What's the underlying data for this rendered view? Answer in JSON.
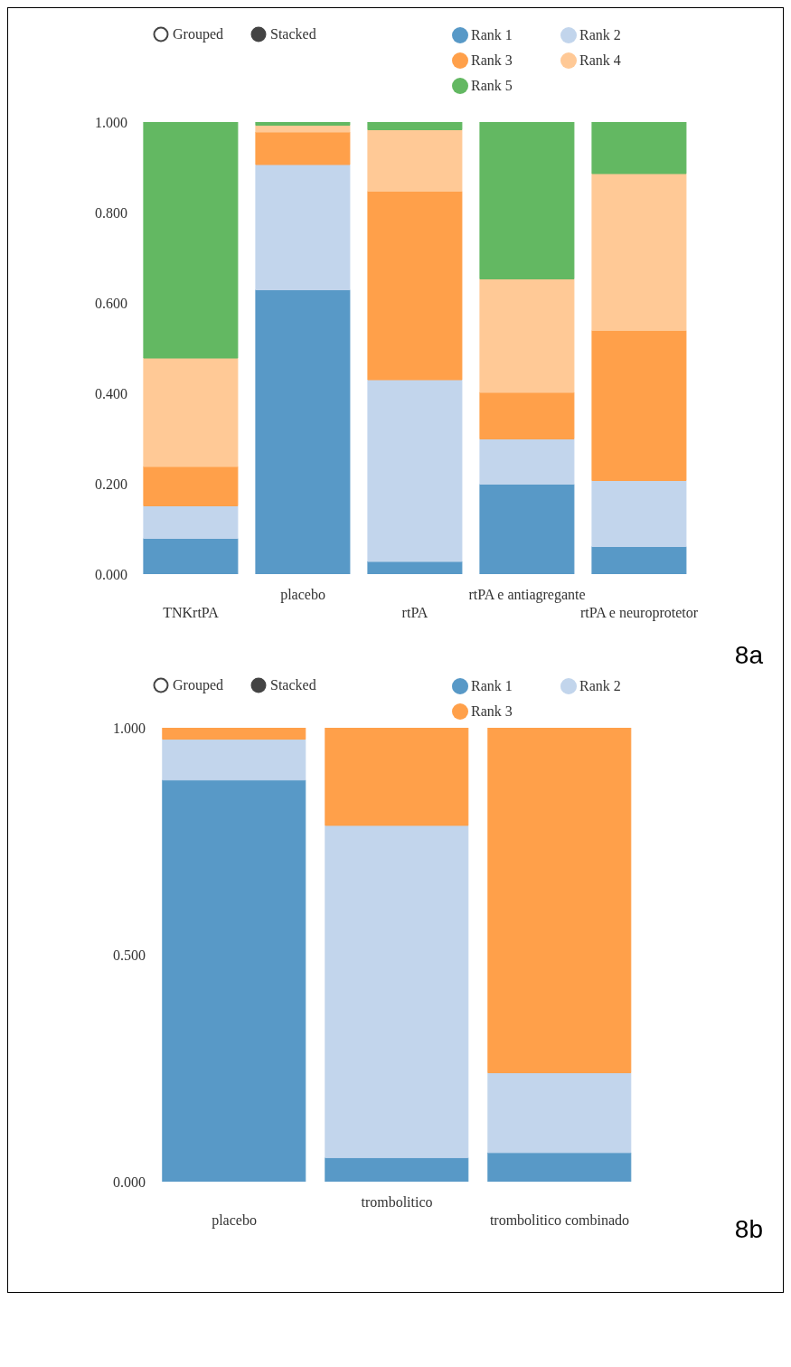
{
  "chart_data": [
    {
      "type": "bar",
      "stacked": true,
      "legend": "top",
      "grid": false,
      "categories": [
        "TNKrtPA",
        "placebo",
        "rtPA",
        "rtPA e antiagregante",
        "rtPA e neuroprotetor"
      ],
      "series": [
        {
          "name": "Rank 1",
          "color": "#5899c7",
          "values": [
            0.079,
            0.629,
            0.028,
            0.199,
            0.061
          ]
        },
        {
          "name": "Rank 2",
          "color": "#c2d5ec",
          "values": [
            0.072,
            0.277,
            0.402,
            0.1,
            0.146
          ]
        },
        {
          "name": "Rank 3",
          "color": "#ffa04a",
          "values": [
            0.087,
            0.072,
            0.417,
            0.103,
            0.332
          ]
        },
        {
          "name": "Rank 4",
          "color": "#ffc996",
          "values": [
            0.24,
            0.015,
            0.136,
            0.251,
            0.347
          ]
        },
        {
          "name": "Rank 5",
          "color": "#63b862",
          "values": [
            0.522,
            0.007,
            0.017,
            0.347,
            0.114
          ]
        }
      ],
      "ylim": [
        0,
        1
      ],
      "yticks": [
        {
          "value": 0,
          "label": "0.000"
        },
        {
          "value": 0.2,
          "label": "0.200"
        },
        {
          "value": 0.4,
          "label": "0.400"
        },
        {
          "value": 0.6,
          "label": "0.600"
        },
        {
          "value": 0.8,
          "label": "0.800"
        },
        {
          "value": 1,
          "label": "1.000"
        }
      ],
      "annotations": [
        "Grouped",
        "Stacked",
        "8a"
      ]
    },
    {
      "type": "bar",
      "stacked": true,
      "legend": "top",
      "grid": false,
      "categories": [
        "placebo",
        "trombolitico",
        "trombolitico combinado"
      ],
      "series": [
        {
          "name": "Rank 1",
          "color": "#5899c7",
          "values": [
            0.885,
            0.053,
            0.064
          ]
        },
        {
          "name": "Rank 2",
          "color": "#c2d5ec",
          "values": [
            0.09,
            0.732,
            0.176
          ]
        },
        {
          "name": "Rank 3",
          "color": "#ffa04a",
          "values": [
            0.025,
            0.215,
            0.76
          ]
        }
      ],
      "ylim": [
        0,
        1
      ],
      "yticks": [
        {
          "value": 0,
          "label": "0.000"
        },
        {
          "value": 0.5,
          "label": "0.500"
        },
        {
          "value": 1,
          "label": "1.000"
        }
      ],
      "annotations": [
        "Grouped",
        "Stacked",
        "8b"
      ]
    }
  ]
}
